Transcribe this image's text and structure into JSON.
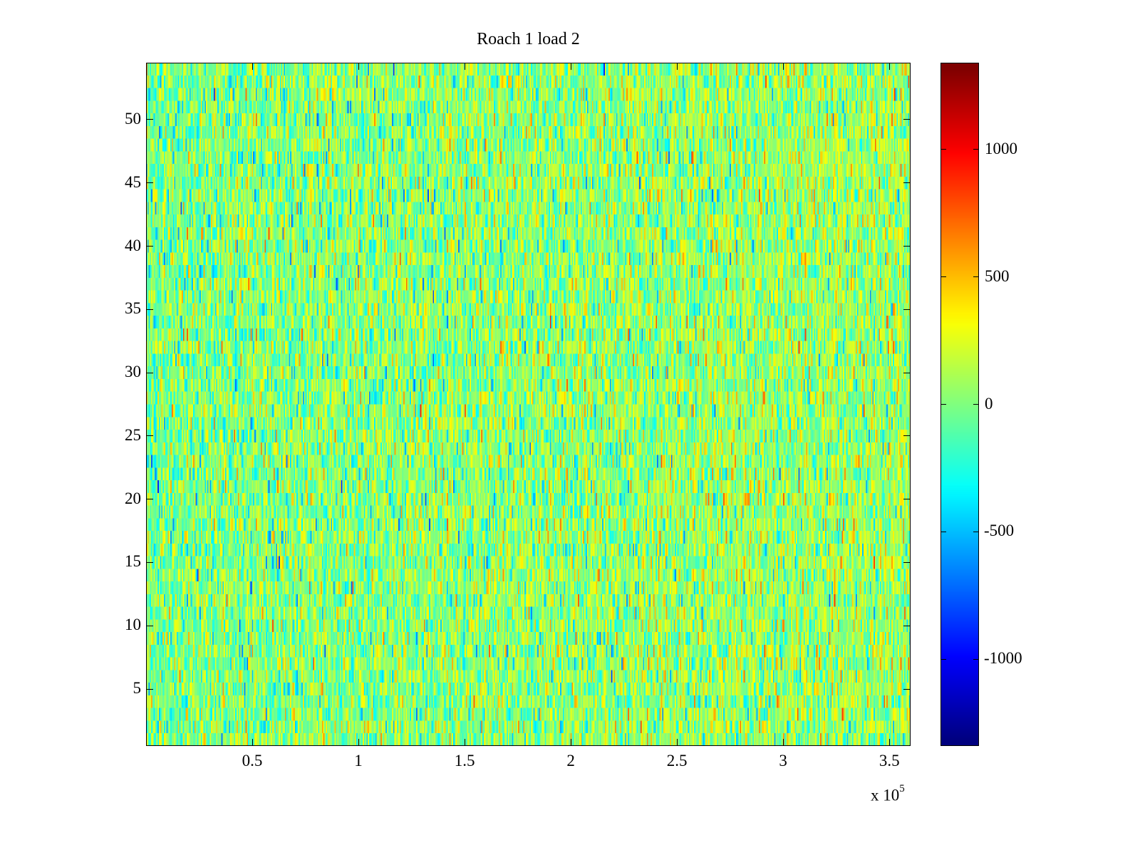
{
  "chart_data": {
    "type": "heatmap",
    "title": "Roach 1 load 2",
    "xlabel": "",
    "ylabel": "",
    "x_exponent_label": "x 10",
    "x_exponent": "5",
    "xlim": [
      0,
      3.6
    ],
    "ylim": [
      0.5,
      54.5
    ],
    "rows": 54,
    "columns": 600,
    "x_ticks": [
      "0.5",
      "1",
      "1.5",
      "2",
      "2.5",
      "3",
      "3.5"
    ],
    "x_tick_values": [
      0.5,
      1,
      1.5,
      2,
      2.5,
      3,
      3.5
    ],
    "y_ticks": [
      "5",
      "10",
      "15",
      "20",
      "25",
      "30",
      "35",
      "40",
      "45",
      "50"
    ],
    "y_tick_values": [
      5,
      10,
      15,
      20,
      25,
      30,
      35,
      40,
      45,
      50
    ],
    "colormap": "jet",
    "clim": [
      -1340,
      1340
    ],
    "colorbar_ticks": [
      "1000",
      "500",
      "0",
      "-500",
      "-1000"
    ],
    "colorbar_tick_values": [
      1000,
      500,
      0,
      -500,
      -1000
    ],
    "value_distribution": {
      "mean": 0,
      "std": 230,
      "right_side_bias": 80,
      "seed": 12345
    },
    "grid": false
  }
}
